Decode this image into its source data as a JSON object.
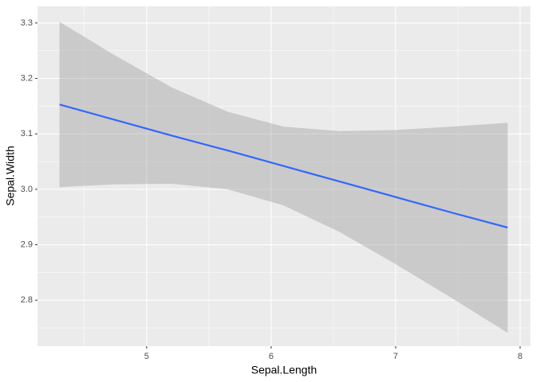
{
  "chart_data": {
    "type": "line",
    "x_label": "Sepal.Length",
    "y_label": "Sepal.Width",
    "x": [
      4.3,
      4.75,
      5.2,
      5.65,
      6.1,
      6.55,
      7.0,
      7.45,
      7.9
    ],
    "values": [
      3.153,
      3.125,
      3.097,
      3.07,
      3.042,
      3.014,
      2.986,
      2.958,
      2.931
    ],
    "upper": [
      3.302,
      3.241,
      3.184,
      3.14,
      3.113,
      3.105,
      3.107,
      3.113,
      3.12
    ],
    "lower": [
      3.004,
      3.009,
      3.01,
      3.0,
      2.971,
      2.923,
      2.865,
      2.804,
      2.741
    ],
    "color": "#3366ff",
    "band_color": "#999999",
    "xlim": [
      4.123,
      8.083
    ],
    "ylim": [
      2.717,
      3.33
    ],
    "xticks": [
      5,
      6,
      7,
      8
    ],
    "yticks": [
      2.8,
      2.9,
      3.0,
      3.1,
      3.2,
      3.3
    ],
    "x_minor_breaks": [
      4.5,
      5.5,
      6.5,
      7.5
    ],
    "y_minor_breaks": [
      2.75,
      2.85,
      2.95,
      3.05,
      3.15,
      3.25
    ],
    "grid": true
  }
}
